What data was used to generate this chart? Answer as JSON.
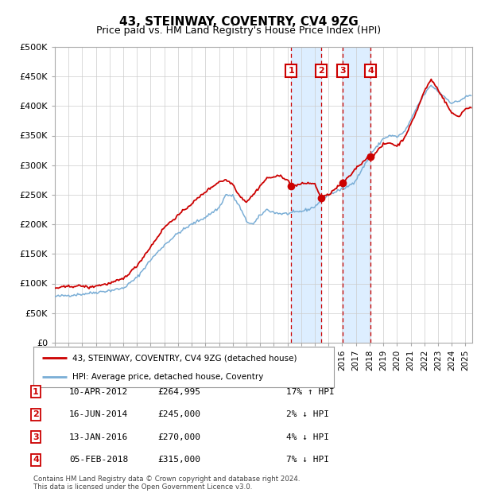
{
  "title": "43, STEINWAY, COVENTRY, CV4 9ZG",
  "subtitle": "Price paid vs. HM Land Registry's House Price Index (HPI)",
  "ylabel_ticks": [
    "£0",
    "£50K",
    "£100K",
    "£150K",
    "£200K",
    "£250K",
    "£300K",
    "£350K",
    "£400K",
    "£450K",
    "£500K"
  ],
  "ytick_values": [
    0,
    50000,
    100000,
    150000,
    200000,
    250000,
    300000,
    350000,
    400000,
    450000,
    500000
  ],
  "ylim": [
    0,
    500000
  ],
  "xlim_start": 1995.0,
  "xlim_end": 2025.5,
  "transactions": [
    {
      "num": 1,
      "date_x": 2012.27,
      "price": 264995,
      "label": "10-APR-2012",
      "price_str": "£264,995",
      "pct": "17%",
      "dir": "↑"
    },
    {
      "num": 2,
      "date_x": 2014.46,
      "price": 245000,
      "label": "16-JUN-2014",
      "price_str": "£245,000",
      "pct": "2%",
      "dir": "↓"
    },
    {
      "num": 3,
      "date_x": 2016.04,
      "price": 270000,
      "label": "13-JAN-2016",
      "price_str": "£270,000",
      "pct": "4%",
      "dir": "↓"
    },
    {
      "num": 4,
      "date_x": 2018.09,
      "price": 315000,
      "label": "05-FEB-2018",
      "price_str": "£315,000",
      "pct": "7%",
      "dir": "↓"
    }
  ],
  "legend_line1": "43, STEINWAY, COVENTRY, CV4 9ZG (detached house)",
  "legend_line2": "HPI: Average price, detached house, Coventry",
  "footer1": "Contains HM Land Registry data © Crown copyright and database right 2024.",
  "footer2": "This data is licensed under the Open Government Licence v3.0.",
  "hpi_color": "#7aaed6",
  "price_color": "#cc0000",
  "box_color": "#cc0000",
  "shade_color": "#ddeeff",
  "grid_color": "#cccccc",
  "bg_color": "#ffffff",
  "hpi_anchors": [
    [
      1995.0,
      78000
    ],
    [
      1996.0,
      80000
    ],
    [
      1997.0,
      82000
    ],
    [
      1998.0,
      85000
    ],
    [
      1999.0,
      88000
    ],
    [
      2000.0,
      92000
    ],
    [
      2001.0,
      110000
    ],
    [
      2002.0,
      140000
    ],
    [
      2003.0,
      165000
    ],
    [
      2004.0,
      185000
    ],
    [
      2005.0,
      200000
    ],
    [
      2006.0,
      212000
    ],
    [
      2007.0,
      228000
    ],
    [
      2007.5,
      250000
    ],
    [
      2008.0,
      248000
    ],
    [
      2008.5,
      230000
    ],
    [
      2009.0,
      205000
    ],
    [
      2009.5,
      200000
    ],
    [
      2010.0,
      215000
    ],
    [
      2010.5,
      225000
    ],
    [
      2011.0,
      220000
    ],
    [
      2011.5,
      218000
    ],
    [
      2012.0,
      218000
    ],
    [
      2012.5,
      220000
    ],
    [
      2013.0,
      222000
    ],
    [
      2013.5,
      225000
    ],
    [
      2014.0,
      230000
    ],
    [
      2014.46,
      240000
    ],
    [
      2015.0,
      250000
    ],
    [
      2015.5,
      255000
    ],
    [
      2016.04,
      260000
    ],
    [
      2016.5,
      265000
    ],
    [
      2017.0,
      275000
    ],
    [
      2017.5,
      295000
    ],
    [
      2018.0,
      315000
    ],
    [
      2018.09,
      320000
    ],
    [
      2018.5,
      330000
    ],
    [
      2019.0,
      345000
    ],
    [
      2019.5,
      350000
    ],
    [
      2020.0,
      348000
    ],
    [
      2020.5,
      355000
    ],
    [
      2021.0,
      375000
    ],
    [
      2021.5,
      400000
    ],
    [
      2022.0,
      420000
    ],
    [
      2022.5,
      435000
    ],
    [
      2023.0,
      425000
    ],
    [
      2023.5,
      415000
    ],
    [
      2024.0,
      405000
    ],
    [
      2024.5,
      408000
    ],
    [
      2025.0,
      415000
    ],
    [
      2025.4,
      418000
    ]
  ],
  "price_anchors": [
    [
      1995.0,
      92000
    ],
    [
      1996.0,
      95000
    ],
    [
      1997.0,
      96000
    ],
    [
      1997.5,
      93000
    ],
    [
      1998.0,
      96000
    ],
    [
      1999.0,
      100000
    ],
    [
      2000.0,
      108000
    ],
    [
      2001.0,
      130000
    ],
    [
      2002.0,
      162000
    ],
    [
      2003.0,
      195000
    ],
    [
      2004.0,
      215000
    ],
    [
      2005.0,
      235000
    ],
    [
      2006.0,
      255000
    ],
    [
      2007.0,
      272000
    ],
    [
      2007.5,
      275000
    ],
    [
      2008.0,
      268000
    ],
    [
      2008.5,
      248000
    ],
    [
      2009.0,
      238000
    ],
    [
      2009.5,
      250000
    ],
    [
      2010.0,
      265000
    ],
    [
      2010.5,
      278000
    ],
    [
      2011.0,
      280000
    ],
    [
      2011.5,
      282000
    ],
    [
      2012.0,
      275000
    ],
    [
      2012.27,
      264995
    ],
    [
      2012.5,
      265000
    ],
    [
      2013.0,
      268000
    ],
    [
      2013.5,
      270000
    ],
    [
      2014.0,
      268000
    ],
    [
      2014.46,
      245000
    ],
    [
      2015.0,
      250000
    ],
    [
      2015.5,
      260000
    ],
    [
      2016.04,
      270000
    ],
    [
      2016.5,
      280000
    ],
    [
      2017.0,
      295000
    ],
    [
      2017.5,
      305000
    ],
    [
      2018.0,
      318000
    ],
    [
      2018.09,
      315000
    ],
    [
      2018.5,
      322000
    ],
    [
      2019.0,
      335000
    ],
    [
      2019.5,
      338000
    ],
    [
      2020.0,
      332000
    ],
    [
      2020.5,
      345000
    ],
    [
      2021.0,
      368000
    ],
    [
      2021.5,
      395000
    ],
    [
      2022.0,
      425000
    ],
    [
      2022.5,
      445000
    ],
    [
      2023.0,
      428000
    ],
    [
      2023.5,
      408000
    ],
    [
      2024.0,
      388000
    ],
    [
      2024.5,
      382000
    ],
    [
      2025.0,
      395000
    ],
    [
      2025.4,
      398000
    ]
  ]
}
